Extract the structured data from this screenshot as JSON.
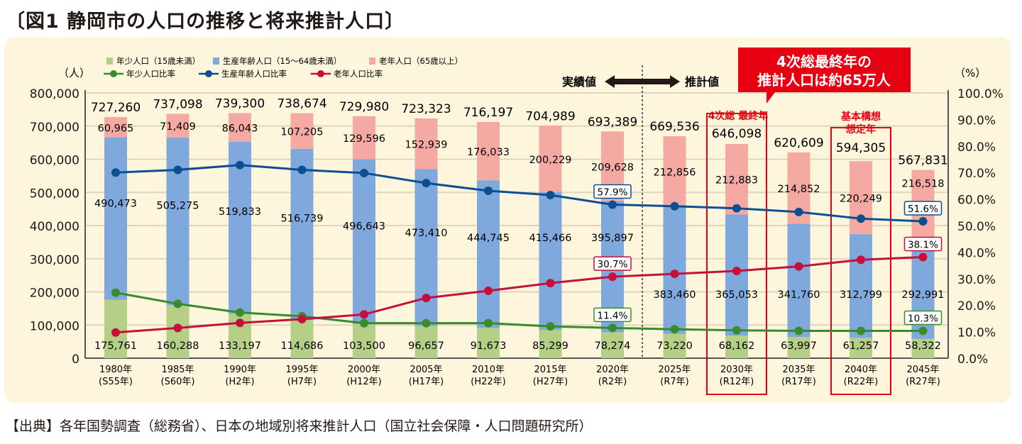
{
  "title": "〔図1  静岡市の人口の推移と将来推計人口〕",
  "source": "【出典】各年国勢調査（総務省）、日本の地域別将来推計人口（国立社会保障・人口問題研究所）",
  "annotations": {
    "actual": "実績値",
    "projected": "推計値",
    "callout_line1": "4次総最終年の",
    "callout_line2": "推計人口は約65万人",
    "box2030_label": "4次総 最終年",
    "box2040_label1": "基本構想",
    "box2040_label2": "想定年"
  },
  "colors": {
    "young": "#b5cf86",
    "working": "#7fa8dc",
    "old": "#f4aaa2",
    "young_line": "#3a8b2e",
    "working_line": "#0b4f92",
    "old_line": "#c4103a",
    "accent": "#e60012"
  },
  "chart_data": {
    "type": "bar+line",
    "title": "静岡市の人口の推移と将来推計人口",
    "ylabel": "（人）",
    "y2label": "（%）",
    "ylim": [
      0,
      800000
    ],
    "y2lim": [
      0,
      100
    ],
    "yticks": [
      "0",
      "100,000",
      "200,000",
      "300,000",
      "400,000",
      "500,000",
      "600,000",
      "700,000",
      "800,000"
    ],
    "y2ticks": [
      "0.0%",
      "10.0%",
      "20.0%",
      "30.0%",
      "40.0%",
      "50.0%",
      "60.0%",
      "70.0%",
      "80.0%",
      "90.0%",
      "100.0%"
    ],
    "grid": true,
    "legend_position": "top-left",
    "categories": [
      "1980年",
      "1985年",
      "1990年",
      "1995年",
      "2000年",
      "2005年",
      "2010年",
      "2015年",
      "2020年",
      "2025年",
      "2030年",
      "2035年",
      "2040年",
      "2045年"
    ],
    "categories_sub": [
      "(S55年)",
      "(S60年)",
      "(H2年)",
      "(H7年)",
      "(H12年)",
      "(H17年)",
      "(H22年)",
      "(H27年)",
      "(R2年)",
      "(R7年)",
      "(R12年)",
      "(R17年)",
      "(R22年)",
      "(R27年)"
    ],
    "totals": [
      "727,260",
      "737,098",
      "739,300",
      "738,674",
      "729,980",
      "723,323",
      "716,197",
      "704,989",
      "693,389",
      "669,536",
      "646,098",
      "620,609",
      "594,305",
      "567,831"
    ],
    "bar_series": [
      {
        "name": "年少人口（15歳未満）",
        "values": [
          175761,
          160288,
          133197,
          114686,
          103500,
          96657,
          91673,
          85299,
          78274,
          73220,
          68162,
          63997,
          61257,
          58322
        ],
        "labels": [
          "175,761",
          "160,288",
          "133,197",
          "114,686",
          "103,500",
          "96,657",
          "91,673",
          "85,299",
          "78,274",
          "73,220",
          "68,162",
          "63,997",
          "61,257",
          "58,322"
        ]
      },
      {
        "name": "生産年齢人口（15～64歳未満）",
        "values": [
          490473,
          505275,
          519833,
          516739,
          496643,
          473410,
          444745,
          415466,
          395897,
          383460,
          365053,
          341760,
          312799,
          292991
        ],
        "labels": [
          "490,473",
          "505,275",
          "519,833",
          "516,739",
          "496,643",
          "473,410",
          "444,745",
          "415,466",
          "395,897",
          "383,460",
          "365,053",
          "341,760",
          "312,799",
          "292,991"
        ]
      },
      {
        "name": "老年人口（65歳以上）",
        "values": [
          60965,
          71409,
          86043,
          107205,
          129596,
          152939,
          176033,
          200229,
          209628,
          212856,
          212883,
          214852,
          220249,
          216518
        ],
        "labels": [
          "60,965",
          "71,409",
          "86,043",
          "107,205",
          "129,596",
          "152,939",
          "176,033",
          "200,229",
          "209,628",
          "212,856",
          "212,883",
          "214,852",
          "220,249",
          "216,518"
        ]
      }
    ],
    "line_series": [
      {
        "name": "年少人口比率",
        "values": [
          24.7,
          20.5,
          17.2,
          15.8,
          13.2,
          13.2,
          13.2,
          12.0,
          11.4,
          10.9,
          10.5,
          10.3,
          10.3,
          10.3
        ]
      },
      {
        "name": "生産年齢人口比率",
        "values": [
          70.0,
          71.0,
          72.8,
          71.0,
          69.8,
          66.0,
          63.1,
          61.5,
          57.9,
          57.3,
          56.5,
          55.1,
          52.6,
          51.6
        ]
      },
      {
        "name": "老年人口比率",
        "values": [
          9.7,
          11.4,
          13.3,
          14.7,
          16.5,
          22.7,
          25.4,
          28.3,
          30.7,
          31.8,
          32.9,
          34.6,
          37.1,
          38.1
        ]
      }
    ],
    "highlighted_labels": [
      {
        "series": 0,
        "index": 8,
        "text": "11.4%"
      },
      {
        "series": 1,
        "index": 8,
        "text": "57.9%"
      },
      {
        "series": 2,
        "index": 8,
        "text": "30.7%"
      },
      {
        "series": 0,
        "index": 13,
        "text": "10.3%"
      },
      {
        "series": 1,
        "index": 13,
        "text": "51.6%"
      },
      {
        "series": 2,
        "index": 13,
        "text": "38.1%"
      }
    ]
  }
}
